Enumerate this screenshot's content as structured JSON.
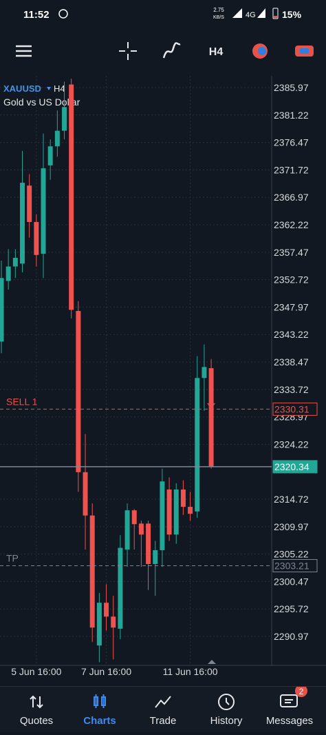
{
  "status_bar": {
    "time": "11:52",
    "speed": "2.75",
    "speed_unit": "KB/S",
    "network": "4G",
    "battery": "15%"
  },
  "toolbar": {
    "timeframe": "H4"
  },
  "chart_data": {
    "type": "candlestick",
    "title": "XAUUSD",
    "timeframe": "H4",
    "subtitle": "Gold vs US Dollar",
    "categories": [
      null,
      null,
      null,
      null,
      null,
      "5 Jun 16:00",
      null,
      null,
      null,
      null,
      null,
      null,
      null,
      null,
      null,
      "7 Jun 16:00",
      null,
      null,
      null,
      null,
      null,
      null,
      null,
      null,
      null,
      null,
      null,
      "11 Jun 16:00",
      null,
      null,
      null
    ],
    "open": [
      2342,
      2352.5,
      2355,
      2355.5,
      2369,
      2362.7,
      2357.2,
      2372.5,
      2375.8,
      2378.5,
      2386.5,
      2347.3,
      2319.4,
      2311.9,
      2289.4,
      2296.8,
      2294.4,
      2292.3,
      2306,
      2312.8,
      2310.5,
      2310.5,
      2303.5,
      2305.9,
      2316.4,
      2308.6,
      2316.4,
      2313.4,
      2312.6,
      2335.7,
      2337.4
    ],
    "high": [
      2356,
      2358,
      2358,
      2375,
      2371,
      2364,
      2378,
      2377,
      2382,
      2387,
      2387.5,
      2349,
      2326,
      2314,
      2298.5,
      2300,
      2298,
      2308.5,
      2314,
      2313,
      2311,
      2311,
      2307.5,
      2320,
      2318.5,
      2317.5,
      2318,
      2316,
      2339.5,
      2341.5,
      2339
    ],
    "low": [
      2340,
      2351,
      2353,
      2354,
      2360,
      2355,
      2353,
      2370,
      2374,
      2377,
      2346,
      2316,
      2306,
      2290,
      2286.5,
      2292,
      2287,
      2290.5,
      2303,
      2306,
      2303,
      2299,
      2298,
      2303,
      2307.5,
      2307,
      2312,
      2311,
      2311.5,
      2330,
      2320
    ],
    "close": [
      2353,
      2355,
      2356.5,
      2369.5,
      2362.7,
      2357,
      2372,
      2375.8,
      2378.5,
      2382.6,
      2347.5,
      2319.4,
      2311.9,
      2292.5,
      2296.8,
      2294.4,
      2292.5,
      2306.3,
      2312.8,
      2310.4,
      2308.6,
      2303.5,
      2305.9,
      2317.8,
      2308.6,
      2316.4,
      2313.4,
      2312.2,
      2335.7,
      2337.6,
      2320.34
    ],
    "up_color": "#22a796",
    "down_color": "#ef5350",
    "ylim": [
      2285.96,
      2388.0
    ],
    "yticks": [
      2385.97,
      2381.22,
      2376.47,
      2371.72,
      2366.97,
      2362.22,
      2357.47,
      2352.72,
      2347.97,
      2343.22,
      2338.47,
      2333.72,
      2328.97,
      2324.22,
      2314.72,
      2309.97,
      2305.22,
      2300.47,
      2295.72,
      2290.97
    ],
    "grid": true,
    "levels": [
      {
        "name": "SELL 1",
        "value": 2330.31,
        "color": "#e5534b",
        "style": "dashed"
      },
      {
        "value": 2320.34,
        "color": "#22a796",
        "style": "solid"
      },
      {
        "name": "TP",
        "value": 2303.21,
        "color": "#7d8794",
        "style": "dashed"
      }
    ]
  },
  "nav": {
    "items": [
      "Quotes",
      "Charts",
      "Trade",
      "History",
      "Messages"
    ],
    "active": 1,
    "badge": "2"
  }
}
